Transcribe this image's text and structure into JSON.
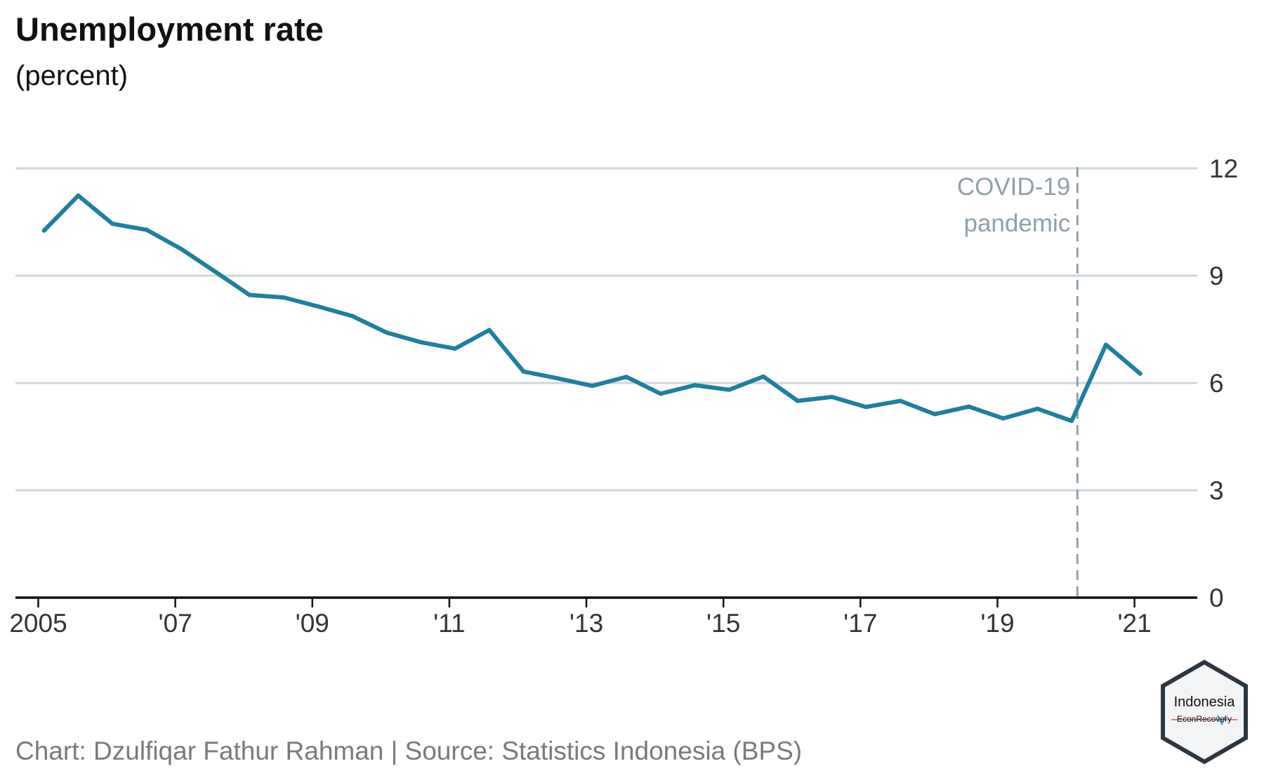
{
  "header": {
    "title": "Unemployment rate",
    "subtitle": "(percent)"
  },
  "footer": {
    "caption": "Chart: Dzulfiqar Fathur Rahman | Source: Statistics Indonesia (BPS)"
  },
  "logo": {
    "line1": "Indonesia",
    "line2": "EconRecovery"
  },
  "colors": {
    "line": "#1f7f9e",
    "grid": "#cfd6db",
    "annotation": "#8fa0ab",
    "axis": "#111111",
    "tick_text": "#333333"
  },
  "chart_data": {
    "type": "line",
    "title": "Unemployment rate",
    "subtitle": "(percent)",
    "xlabel": "",
    "ylabel": "",
    "ylim": [
      0,
      12
    ],
    "xlim": [
      "2004-09",
      "2021-12"
    ],
    "y_ticks": [
      0,
      3,
      6,
      9,
      12
    ],
    "y_axis_side": "right",
    "grid": "horizontal",
    "x_ticks": [
      {
        "x": "2005-01",
        "label": "2005"
      },
      {
        "x": "2007-01",
        "label": "'07"
      },
      {
        "x": "2009-01",
        "label": "'09"
      },
      {
        "x": "2011-01",
        "label": "'11"
      },
      {
        "x": "2013-01",
        "label": "'13"
      },
      {
        "x": "2015-01",
        "label": "'15"
      },
      {
        "x": "2017-01",
        "label": "'17"
      },
      {
        "x": "2019-01",
        "label": "'19"
      },
      {
        "x": "2021-01",
        "label": "'21"
      }
    ],
    "series": [
      {
        "x": [
          "2005-02",
          "2005-08",
          "2006-02",
          "2006-08",
          "2007-02",
          "2007-08",
          "2008-02",
          "2008-08",
          "2009-02",
          "2009-08",
          "2010-02",
          "2010-08",
          "2011-02",
          "2011-08",
          "2012-02",
          "2012-08",
          "2013-02",
          "2013-08",
          "2014-02",
          "2014-08",
          "2015-02",
          "2015-08",
          "2016-02",
          "2016-08",
          "2017-02",
          "2017-08",
          "2018-02",
          "2018-08",
          "2019-02",
          "2019-08",
          "2020-02",
          "2020-08",
          "2021-02"
        ],
        "values": [
          10.26,
          11.24,
          10.45,
          10.28,
          9.75,
          9.11,
          8.46,
          8.39,
          8.14,
          7.87,
          7.41,
          7.14,
          6.96,
          7.48,
          6.32,
          6.13,
          5.92,
          6.17,
          5.7,
          5.94,
          5.81,
          6.18,
          5.5,
          5.61,
          5.33,
          5.5,
          5.13,
          5.34,
          5.01,
          5.28,
          4.94,
          7.07,
          6.26
        ]
      }
    ],
    "annotations": [
      {
        "x": "2020-03",
        "type": "vline",
        "style": "dashed",
        "label_lines": [
          "COVID-19",
          "pandemic"
        ]
      }
    ]
  }
}
